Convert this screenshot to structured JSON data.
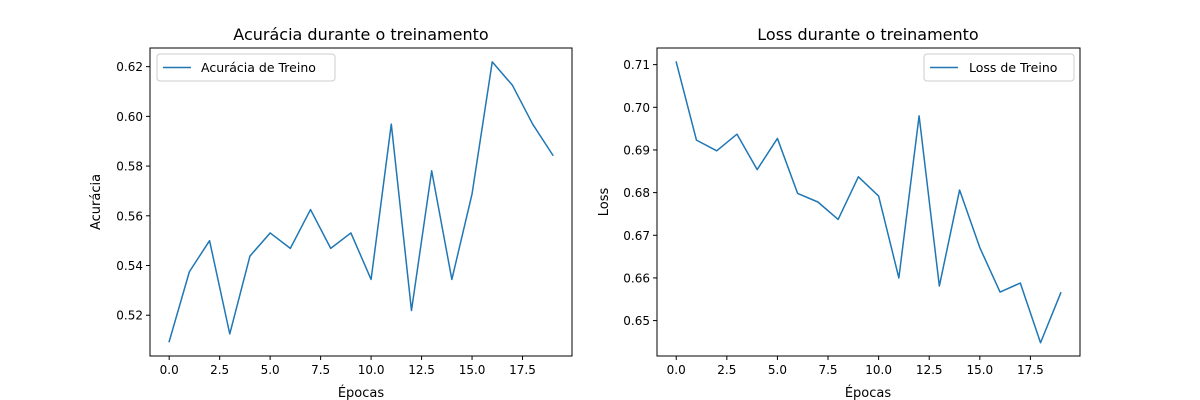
{
  "chart_data": [
    {
      "type": "line",
      "title": "Acurácia durante o treinamento",
      "xlabel": "Épocas",
      "ylabel": "Acurácia",
      "xlim": [
        -0.95,
        19.95
      ],
      "ylim": [
        0.5036,
        0.6275
      ],
      "x_ticks": [
        0,
        2.5,
        5,
        7.5,
        10,
        12.5,
        15,
        17.5
      ],
      "x_tick_labels": [
        "0.0",
        "2.5",
        "5.0",
        "7.5",
        "10.0",
        "12.5",
        "15.0",
        "17.5"
      ],
      "y_ticks": [
        0.52,
        0.54,
        0.56,
        0.58,
        0.6,
        0.62
      ],
      "y_tick_labels": [
        "0.52",
        "0.54",
        "0.56",
        "0.58",
        "0.60",
        "0.62"
      ],
      "grid": false,
      "legend_position": "top-left",
      "series": [
        {
          "name": "Acurácia de Treino",
          "color": "#1f77b4",
          "x": [
            0,
            1,
            2,
            3,
            4,
            5,
            6,
            7,
            8,
            9,
            10,
            11,
            12,
            13,
            14,
            15,
            16,
            17,
            18,
            19
          ],
          "values": [
            0.5094,
            0.5375,
            0.55,
            0.5125,
            0.5438,
            0.5531,
            0.5469,
            0.5625,
            0.5469,
            0.5531,
            0.5344,
            0.5969,
            0.5219,
            0.5781,
            0.5344,
            0.5688,
            0.6219,
            0.6125,
            0.5969,
            0.5844
          ]
        }
      ]
    },
    {
      "type": "line",
      "title": "Loss durante o treinamento",
      "xlabel": "Épocas",
      "ylabel": "Loss",
      "xlim": [
        -0.95,
        19.95
      ],
      "ylim": [
        0.6417,
        0.7139
      ],
      "x_ticks": [
        0,
        2.5,
        5,
        7.5,
        10,
        12.5,
        15,
        17.5
      ],
      "x_tick_labels": [
        "0.0",
        "2.5",
        "5.0",
        "7.5",
        "10.0",
        "12.5",
        "15.0",
        "17.5"
      ],
      "y_ticks": [
        0.65,
        0.66,
        0.67,
        0.68,
        0.69,
        0.7,
        0.71
      ],
      "y_tick_labels": [
        "0.65",
        "0.66",
        "0.67",
        "0.68",
        "0.69",
        "0.70",
        "0.71"
      ],
      "grid": false,
      "legend_position": "top-right",
      "series": [
        {
          "name": "Loss de Treino",
          "color": "#1f77b4",
          "x": [
            0,
            1,
            2,
            3,
            4,
            5,
            6,
            7,
            8,
            9,
            10,
            11,
            12,
            13,
            14,
            15,
            16,
            17,
            18,
            19
          ],
          "values": [
            0.7106,
            0.6923,
            0.6898,
            0.6937,
            0.6854,
            0.6927,
            0.6798,
            0.6778,
            0.6737,
            0.6837,
            0.6792,
            0.66,
            0.698,
            0.6581,
            0.6806,
            0.6671,
            0.6567,
            0.6588,
            0.6448,
            0.6565
          ]
        }
      ]
    }
  ]
}
